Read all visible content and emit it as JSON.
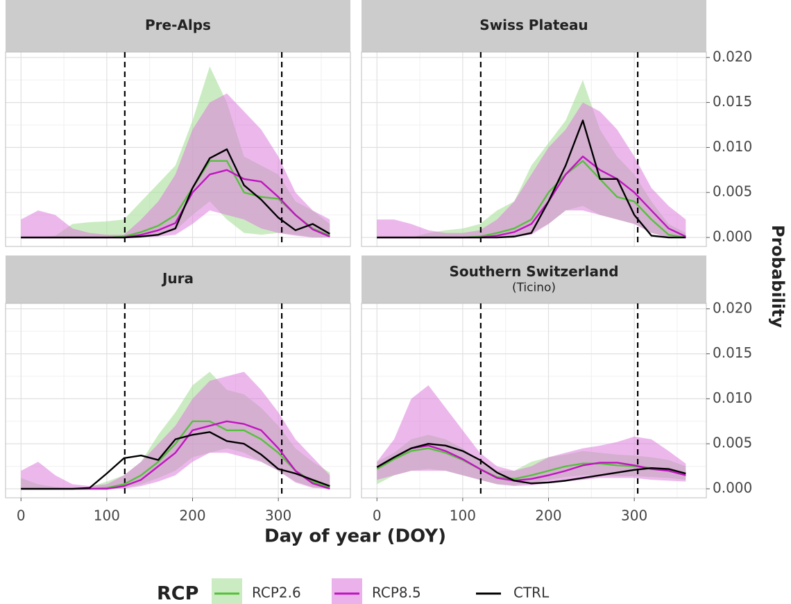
{
  "figure": {
    "x_label": "Day of year (DOY)",
    "y_label": "Probability",
    "legend_title": "RCP",
    "xlim": [
      -18,
      384
    ],
    "ylim": [
      -0.001,
      0.0206
    ],
    "xticks": [
      0,
      100,
      200,
      300
    ],
    "xminor": [
      50,
      150,
      250,
      350
    ],
    "yticks": [
      {
        "value": 0,
        "label": "0.000"
      },
      0.005,
      {
        "value": 0.01,
        "label": "0.010"
      },
      0.015,
      {
        "value": 0.02,
        "label": "0.020"
      }
    ],
    "yminor": [
      0.0025,
      0.0075,
      0.0125,
      0.0175
    ],
    "vlines": [
      121,
      304
    ],
    "grid": true
  },
  "chart_data": [
    {
      "type": "line",
      "title": "Pre-Alps",
      "x": [
        0,
        20,
        40,
        60,
        80,
        100,
        120,
        140,
        160,
        180,
        200,
        220,
        240,
        260,
        280,
        300,
        320,
        340,
        360
      ],
      "series": [
        {
          "name": "RCP2.6",
          "color": "#55c03c",
          "band_color": "#a8e09a",
          "values": [
            0,
            0,
            0,
            0,
            0,
            0,
            0.0001,
            0.0006,
            0.0013,
            0.0025,
            0.0055,
            0.0085,
            0.0085,
            0.005,
            0.0045,
            0.0043,
            0.0025,
            0.001,
            0.0002
          ],
          "lower": [
            0,
            0,
            0,
            0,
            0,
            0,
            0,
            0.0001,
            0.0003,
            0.0008,
            0.0025,
            0.004,
            0.002,
            0.0005,
            0.0003,
            0.0005,
            0.0003,
            0,
            0
          ],
          "upper": [
            0,
            0,
            0.0002,
            0.0015,
            0.0017,
            0.0018,
            0.002,
            0.004,
            0.006,
            0.008,
            0.013,
            0.019,
            0.015,
            0.009,
            0.008,
            0.007,
            0.004,
            0.003,
            0.0015
          ]
        },
        {
          "name": "RCP8.5",
          "color": "#c014c0",
          "band_color": "#dc7ddc",
          "values": [
            0,
            0,
            0,
            0,
            0,
            0,
            0,
            0.0003,
            0.0008,
            0.0016,
            0.005,
            0.007,
            0.0075,
            0.0065,
            0.0062,
            0.0045,
            0.0025,
            0.0009,
            0.0001
          ],
          "lower": [
            0,
            0,
            0,
            0,
            0,
            0,
            0,
            0,
            0.0001,
            0.0003,
            0.0015,
            0.003,
            0.0025,
            0.002,
            0.001,
            0.0005,
            0.0002,
            0,
            0
          ],
          "upper": [
            0.002,
            0.003,
            0.0025,
            0.001,
            0.0005,
            0.0003,
            0.0003,
            0.002,
            0.004,
            0.007,
            0.012,
            0.015,
            0.016,
            0.014,
            0.012,
            0.009,
            0.005,
            0.003,
            0.002
          ]
        },
        {
          "name": "CTRL",
          "color": "#000000",
          "values": [
            0,
            0,
            0,
            0,
            0,
            0,
            0,
            0.0001,
            0.0003,
            0.001,
            0.0055,
            0.0088,
            0.0098,
            0.0058,
            0.0042,
            0.0022,
            0.0008,
            0.0015,
            0.0004
          ]
        }
      ]
    },
    {
      "type": "line",
      "title": "Swiss Plateau",
      "x": [
        0,
        20,
        40,
        60,
        80,
        100,
        120,
        140,
        160,
        180,
        200,
        220,
        240,
        260,
        280,
        300,
        320,
        340,
        360
      ],
      "series": [
        {
          "name": "RCP2.6",
          "color": "#55c03c",
          "band_color": "#a8e09a",
          "values": [
            0,
            0,
            0,
            0,
            0,
            0,
            0.0001,
            0.0005,
            0.001,
            0.002,
            0.005,
            0.007,
            0.0085,
            0.0065,
            0.0045,
            0.004,
            0.002,
            0.0003,
            0
          ],
          "lower": [
            0,
            0,
            0,
            0,
            0,
            0,
            0,
            0.0001,
            0.0002,
            0.0005,
            0.0015,
            0.003,
            0.0035,
            0.0025,
            0.002,
            0.0015,
            0.0005,
            0,
            0
          ],
          "upper": [
            0,
            0,
            0,
            0.0005,
            0.0008,
            0.001,
            0.0015,
            0.003,
            0.004,
            0.008,
            0.0105,
            0.013,
            0.0175,
            0.012,
            0.009,
            0.007,
            0.004,
            0.0015,
            0.0005
          ]
        },
        {
          "name": "RCP8.5",
          "color": "#c014c0",
          "band_color": "#dc7ddc",
          "values": [
            0,
            0,
            0,
            0,
            0,
            0,
            0,
            0.0002,
            0.0006,
            0.0015,
            0.004,
            0.007,
            0.009,
            0.0075,
            0.0065,
            0.005,
            0.003,
            0.001,
            0.0001
          ],
          "lower": [
            0,
            0,
            0,
            0,
            0,
            0,
            0,
            0,
            0.0001,
            0.0003,
            0.0015,
            0.003,
            0.003,
            0.0025,
            0.002,
            0.0015,
            0.0005,
            0,
            0
          ],
          "upper": [
            0.002,
            0.002,
            0.0015,
            0.0008,
            0.0005,
            0.0005,
            0.0008,
            0.002,
            0.004,
            0.007,
            0.01,
            0.012,
            0.015,
            0.014,
            0.012,
            0.009,
            0.0055,
            0.0035,
            0.002
          ]
        },
        {
          "name": "CTRL",
          "color": "#000000",
          "values": [
            0,
            0,
            0,
            0,
            0,
            0,
            0,
            0,
            0.0001,
            0.0005,
            0.004,
            0.008,
            0.013,
            0.0065,
            0.0065,
            0.0025,
            0.0002,
            0,
            0
          ]
        }
      ]
    },
    {
      "type": "line",
      "title": "Jura",
      "x": [
        0,
        20,
        40,
        60,
        80,
        100,
        120,
        140,
        160,
        180,
        200,
        220,
        240,
        260,
        280,
        300,
        320,
        340,
        360
      ],
      "series": [
        {
          "name": "RCP2.6",
          "color": "#55c03c",
          "band_color": "#a8e09a",
          "values": [
            0,
            0,
            0,
            0,
            0,
            0.0001,
            0.0005,
            0.0015,
            0.003,
            0.005,
            0.0075,
            0.0075,
            0.0065,
            0.0065,
            0.0055,
            0.004,
            0.002,
            0.0008,
            0.0001
          ],
          "lower": [
            0,
            0,
            0,
            0,
            0,
            0,
            0.0001,
            0.0005,
            0.0012,
            0.002,
            0.0035,
            0.004,
            0.0045,
            0.004,
            0.003,
            0.002,
            0.0008,
            0.0002,
            0
          ],
          "upper": [
            0.0012,
            0.0005,
            0.0002,
            0,
            0.0002,
            0.0008,
            0.0015,
            0.003,
            0.006,
            0.0085,
            0.0115,
            0.013,
            0.011,
            0.0105,
            0.009,
            0.007,
            0.0045,
            0.003,
            0.0018
          ]
        },
        {
          "name": "RCP8.5",
          "color": "#c014c0",
          "band_color": "#dc7ddc",
          "values": [
            0,
            0,
            0,
            0,
            0,
            0,
            0.0003,
            0.001,
            0.0025,
            0.004,
            0.0065,
            0.007,
            0.0075,
            0.0072,
            0.0065,
            0.0045,
            0.002,
            0.0006,
            0
          ],
          "lower": [
            0,
            0,
            0,
            0,
            0,
            0,
            0,
            0.0003,
            0.0008,
            0.0015,
            0.003,
            0.004,
            0.004,
            0.0035,
            0.003,
            0.002,
            0.0007,
            0.0001,
            0
          ],
          "upper": [
            0.002,
            0.003,
            0.0015,
            0.0005,
            0.0003,
            0.0005,
            0.0015,
            0.003,
            0.005,
            0.007,
            0.01,
            0.012,
            0.0125,
            0.013,
            0.011,
            0.0085,
            0.0055,
            0.0035,
            0.0015
          ]
        },
        {
          "name": "CTRL",
          "color": "#000000",
          "values": [
            0,
            0,
            0,
            0,
            0.0001,
            0.0017,
            0.0034,
            0.0037,
            0.0032,
            0.0055,
            0.006,
            0.0063,
            0.0053,
            0.005,
            0.0038,
            0.0022,
            0.0017,
            0.001,
            0.0003
          ]
        }
      ]
    },
    {
      "type": "line",
      "title": "Southern Switzerland",
      "subtitle": "(Ticino)",
      "x": [
        0,
        20,
        40,
        60,
        80,
        100,
        120,
        140,
        160,
        180,
        200,
        220,
        240,
        260,
        280,
        300,
        320,
        340,
        360
      ],
      "series": [
        {
          "name": "RCP2.6",
          "color": "#55c03c",
          "band_color": "#a8e09a",
          "values": [
            0.0022,
            0.0033,
            0.0042,
            0.0045,
            0.004,
            0.0032,
            0.0022,
            0.0013,
            0.0011,
            0.0015,
            0.002,
            0.0025,
            0.0028,
            0.0028,
            0.0026,
            0.0025,
            0.0023,
            0.0022,
            0.0017
          ],
          "lower": [
            0.0005,
            0.0015,
            0.002,
            0.0022,
            0.002,
            0.0015,
            0.001,
            0.0005,
            0.0004,
            0.0007,
            0.001,
            0.0013,
            0.0015,
            0.0015,
            0.0014,
            0.0014,
            0.0013,
            0.0012,
            0.001
          ],
          "upper": [
            0.003,
            0.004,
            0.0055,
            0.006,
            0.0055,
            0.0045,
            0.003,
            0.002,
            0.002,
            0.003,
            0.0035,
            0.0038,
            0.0042,
            0.004,
            0.0038,
            0.0037,
            0.0035,
            0.0032,
            0.0025
          ]
        },
        {
          "name": "RCP8.5",
          "color": "#c014c0",
          "band_color": "#dc7ddc",
          "values": [
            0.0024,
            0.0035,
            0.0045,
            0.0048,
            0.0042,
            0.0033,
            0.0022,
            0.0012,
            0.0009,
            0.0011,
            0.0015,
            0.002,
            0.0026,
            0.0029,
            0.0029,
            0.0026,
            0.0022,
            0.002,
            0.0015
          ],
          "lower": [
            0.001,
            0.0015,
            0.002,
            0.002,
            0.002,
            0.0015,
            0.001,
            0.0005,
            0.0003,
            0.0004,
            0.0006,
            0.0008,
            0.001,
            0.0012,
            0.0012,
            0.0012,
            0.001,
            0.0009,
            0.0008
          ],
          "upper": [
            0.003,
            0.0055,
            0.01,
            0.0115,
            0.009,
            0.0065,
            0.004,
            0.0025,
            0.002,
            0.0025,
            0.0035,
            0.004,
            0.0045,
            0.0048,
            0.0052,
            0.0058,
            0.0055,
            0.0042,
            0.0028
          ]
        },
        {
          "name": "CTRL",
          "color": "#000000",
          "values": [
            0.0024,
            0.0035,
            0.0045,
            0.005,
            0.0048,
            0.0042,
            0.0032,
            0.0018,
            0.0009,
            0.0006,
            0.0007,
            0.0009,
            0.0012,
            0.0015,
            0.0018,
            0.0021,
            0.0023,
            0.0022,
            0.0017
          ]
        }
      ]
    }
  ]
}
